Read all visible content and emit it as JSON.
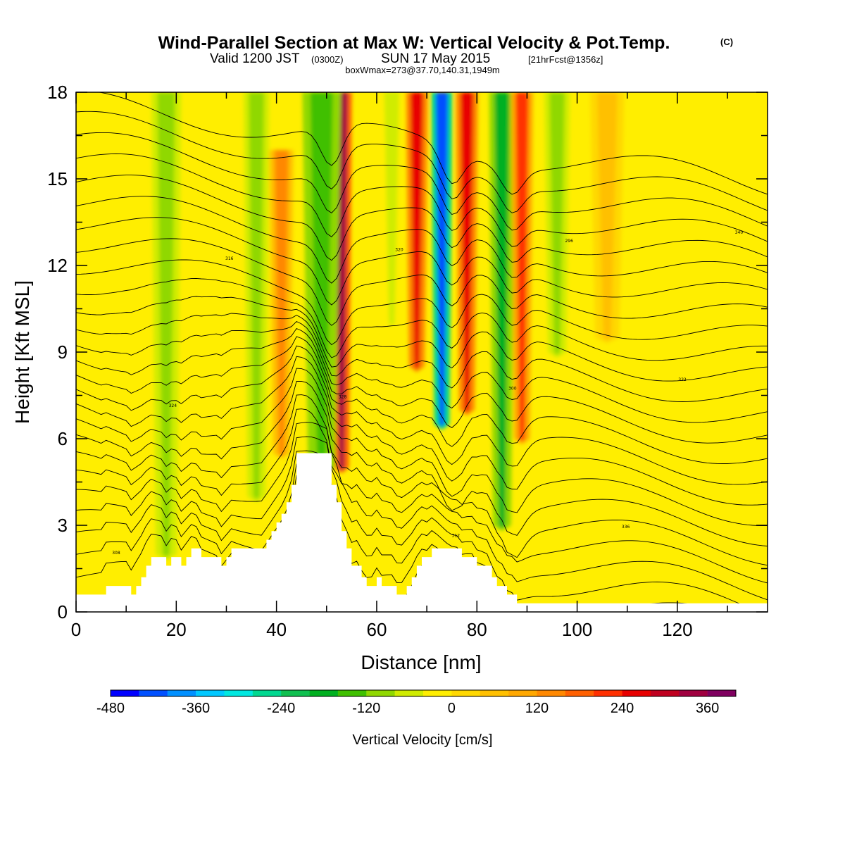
{
  "title": {
    "main": "Wind-Parallel Section at Max W: Vertical Velocity & Pot.Temp.",
    "copyright": "(C)",
    "line2_a": "Valid 1200 JST",
    "line2_b": "(0300Z)",
    "line2_c": "SUN 17 May 2015",
    "line2_d": "[21hrFcst@1356z]",
    "line3": "boxWmax=273@37.70,140.31,1949m"
  },
  "chart_data": {
    "type": "heatmap",
    "title": "Wind-Parallel Section at Max W: Vertical Velocity & Pot.Temp.",
    "xlabel": "Distance [nm]",
    "ylabel": "Height [Kft MSL]",
    "xlim": [
      0,
      138
    ],
    "ylim": [
      0,
      18
    ],
    "x_ticks": [
      "0",
      "20",
      "40",
      "60",
      "80",
      "100",
      "120"
    ],
    "x_tick_values": [
      0,
      20,
      40,
      60,
      80,
      100,
      120
    ],
    "y_ticks": [
      "0",
      "3",
      "6",
      "9",
      "12",
      "15",
      "18"
    ],
    "y_tick_values": [
      0,
      3,
      6,
      9,
      12,
      15,
      18
    ],
    "colorbar": {
      "title": "Vertical Velocity [cm/s]",
      "min": -480,
      "max": 400,
      "step": 40,
      "labels": [
        "-480",
        "-360",
        "-240",
        "-120",
        "0",
        "120",
        "240",
        "360"
      ],
      "label_values": [
        -480,
        -360,
        -240,
        -120,
        0,
        120,
        240,
        360
      ],
      "colors": [
        "#0000ff",
        "#0050ff",
        "#0090ff",
        "#00c8ff",
        "#00e8e0",
        "#00d890",
        "#10c050",
        "#00b020",
        "#40c000",
        "#90d800",
        "#d0ec00",
        "#ffee00",
        "#ffd800",
        "#ffc000",
        "#ffa800",
        "#ff8800",
        "#ff6000",
        "#ff3000",
        "#e80000",
        "#c00020",
        "#a00040",
        "#800060"
      ]
    },
    "velocity_features": [
      {
        "x": 53,
        "top": 18,
        "bottom": 5.0,
        "width": 2.4,
        "value": 320
      },
      {
        "x": 49,
        "top": 18,
        "bottom": 5.0,
        "width": 4.5,
        "value": -150
      },
      {
        "x": 41,
        "top": 16,
        "bottom": 5.5,
        "width": 2.8,
        "value": 140
      },
      {
        "x": 36,
        "top": 18,
        "bottom": 4.0,
        "width": 3.0,
        "value": -110
      },
      {
        "x": 18,
        "top": 18,
        "bottom": 2.0,
        "width": 3.5,
        "value": -90
      },
      {
        "x": 73,
        "top": 18,
        "bottom": 6.5,
        "width": 2.5,
        "value": -440
      },
      {
        "x": 78,
        "top": 18,
        "bottom": 7.0,
        "width": 2.6,
        "value": 260
      },
      {
        "x": 68,
        "top": 18,
        "bottom": 8.5,
        "width": 2.6,
        "value": 260
      },
      {
        "x": 85,
        "top": 18,
        "bottom": 3.0,
        "width": 3.0,
        "value": -180
      },
      {
        "x": 89,
        "top": 18,
        "bottom": 6.0,
        "width": 2.6,
        "value": 200
      },
      {
        "x": 63,
        "top": 18,
        "bottom": 10.0,
        "width": 3.0,
        "value": -70
      },
      {
        "x": 96,
        "top": 18,
        "bottom": 9.0,
        "width": 3.0,
        "value": -120
      },
      {
        "x": 106,
        "top": 18,
        "bottom": 9.5,
        "width": 4.0,
        "value": 70
      }
    ],
    "terrain": [
      [
        0,
        0.6
      ],
      [
        1,
        0.6
      ],
      [
        1,
        0.6
      ],
      [
        6,
        0.6
      ],
      [
        6,
        0.9
      ],
      [
        11,
        0.9
      ],
      [
        11,
        0.6
      ],
      [
        12,
        0.6
      ],
      [
        12,
        0.9
      ],
      [
        13,
        0.9
      ],
      [
        13,
        1.2
      ],
      [
        14,
        1.2
      ],
      [
        14,
        1.6
      ],
      [
        15,
        1.6
      ],
      [
        15,
        1.9
      ],
      [
        18,
        1.9
      ],
      [
        18,
        1.6
      ],
      [
        19,
        1.6
      ],
      [
        19,
        1.9
      ],
      [
        21,
        1.9
      ],
      [
        21,
        1.6
      ],
      [
        22,
        1.6
      ],
      [
        22,
        1.9
      ],
      [
        23,
        1.9
      ],
      [
        23,
        2.2
      ],
      [
        25,
        2.2
      ],
      [
        25,
        1.9
      ],
      [
        29,
        1.9
      ],
      [
        29,
        1.6
      ],
      [
        30,
        1.6
      ],
      [
        30,
        1.9
      ],
      [
        31,
        1.9
      ],
      [
        31,
        2.2
      ],
      [
        32,
        2.2
      ],
      [
        32,
        2.2
      ],
      [
        38,
        2.2
      ],
      [
        38,
        2.5
      ],
      [
        39,
        2.5
      ],
      [
        39,
        2.8
      ],
      [
        40,
        2.8
      ],
      [
        40,
        3.1
      ],
      [
        41,
        3.1
      ],
      [
        41,
        3.4
      ],
      [
        42,
        3.4
      ],
      [
        42,
        3.8
      ],
      [
        43,
        3.8
      ],
      [
        43,
        4.4
      ],
      [
        44,
        4.4
      ],
      [
        44,
        5.5
      ],
      [
        51,
        5.5
      ],
      [
        51,
        4.4
      ],
      [
        52,
        4.4
      ],
      [
        52,
        3.8
      ],
      [
        53,
        3.8
      ],
      [
        53,
        2.8
      ],
      [
        54,
        2.8
      ],
      [
        54,
        2.2
      ],
      [
        55,
        2.2
      ],
      [
        55,
        1.6
      ],
      [
        57,
        1.6
      ],
      [
        57,
        1.2
      ],
      [
        58,
        1.2
      ],
      [
        58,
        0.9
      ],
      [
        60,
        0.9
      ],
      [
        60,
        1.2
      ],
      [
        61,
        1.2
      ],
      [
        61,
        0.9
      ],
      [
        64,
        0.9
      ],
      [
        64,
        0.6
      ],
      [
        66,
        0.6
      ],
      [
        66,
        0.9
      ],
      [
        67,
        0.9
      ],
      [
        67,
        1.2
      ],
      [
        68,
        1.2
      ],
      [
        68,
        1.6
      ],
      [
        69,
        1.6
      ],
      [
        69,
        1.9
      ],
      [
        71,
        1.9
      ],
      [
        71,
        2.2
      ],
      [
        77,
        2.2
      ],
      [
        77,
        1.9
      ],
      [
        80,
        1.9
      ],
      [
        80,
        1.6
      ],
      [
        83,
        1.6
      ],
      [
        83,
        1.2
      ],
      [
        84,
        1.2
      ],
      [
        84,
        0.9
      ],
      [
        86,
        0.9
      ],
      [
        86,
        0.6
      ],
      [
        88,
        0.6
      ],
      [
        88,
        0.3
      ],
      [
        90,
        0.3
      ],
      [
        90,
        0.3
      ],
      [
        138,
        0.3
      ]
    ],
    "contour_labels": [
      "308",
      "324",
      "316",
      "304",
      "328",
      "320",
      "312",
      "300",
      "296",
      "336",
      "332",
      "340"
    ]
  }
}
